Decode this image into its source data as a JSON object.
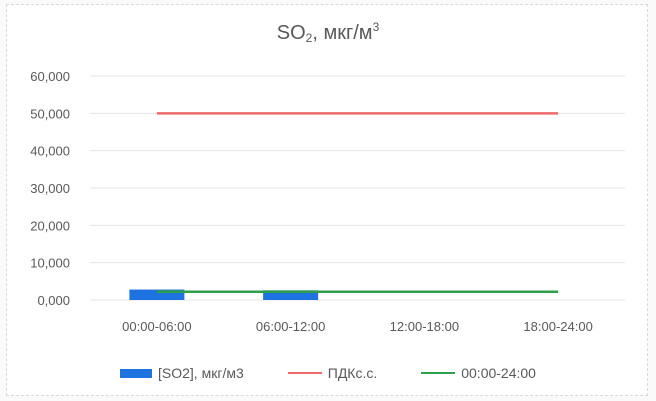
{
  "chart_data": {
    "type": "bar",
    "title_main": "SO",
    "title_sub": "2",
    "title_rest": ", мкг/м",
    "title_sup": "3",
    "categories": [
      "00:00-06:00",
      "06:00-12:00",
      "12:00-18:00",
      "18:00-24:00"
    ],
    "ylim": [
      0,
      60
    ],
    "yticks": [
      "0,000",
      "10,000",
      "20,000",
      "30,000",
      "40,000",
      "50,000",
      "60,000"
    ],
    "series": [
      {
        "name": "[SO2], мкг/м3",
        "kind": "bar",
        "color": "#1f73e0",
        "values": [
          2.8,
          2.6,
          null,
          null
        ]
      },
      {
        "name": "ПДКс.с.",
        "kind": "line",
        "color": "#ef6b6b",
        "values": [
          50,
          50,
          50,
          50
        ]
      },
      {
        "name": "00:00-24:00",
        "kind": "line",
        "color": "#2e9e4a",
        "values": [
          2.2,
          2.2,
          2.2,
          2.2
        ]
      }
    ],
    "grid": true,
    "legend_position": "bottom"
  }
}
